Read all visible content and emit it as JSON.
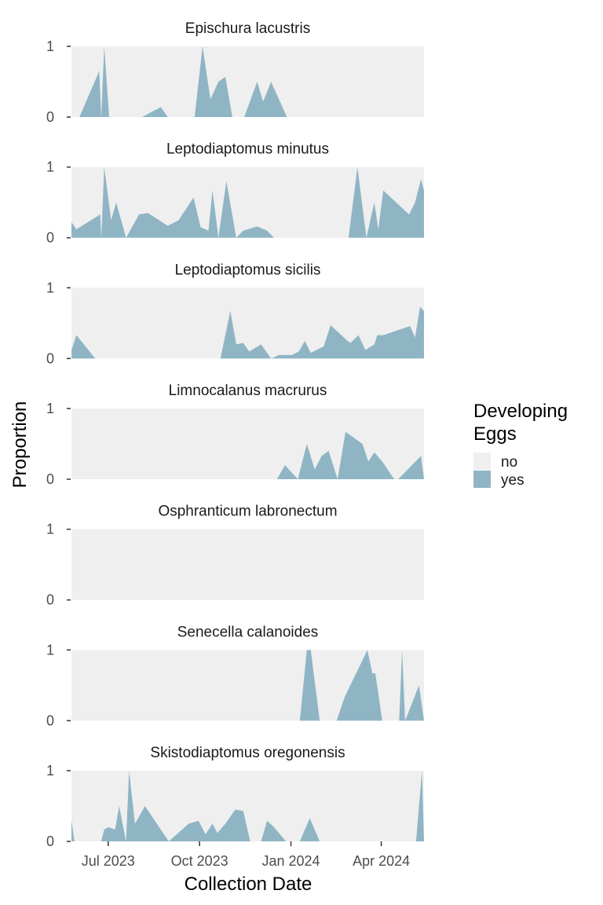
{
  "chart_data": {
    "type": "area",
    "xlabel": "Collection Date",
    "ylabel": "Proportion",
    "x_range": [
      "2023-05-25",
      "2024-05-14"
    ],
    "ylim": [
      0,
      1
    ],
    "y_ticks": [
      {
        "value": 0,
        "label": "0"
      },
      {
        "value": 1,
        "label": "1"
      }
    ],
    "x_ticks": [
      {
        "value": "2023-07-01",
        "label": "Jul 2023"
      },
      {
        "value": "2023-10-01",
        "label": "Oct 2023"
      },
      {
        "value": "2024-01-01",
        "label": "Jan 2024"
      },
      {
        "value": "2024-04-01",
        "label": "Apr 2024"
      }
    ],
    "panel_background_color": "#efefef",
    "yes_fill_color": "#8fb5c5",
    "legend": {
      "title_line1": "Developing",
      "title_line2": "Eggs",
      "placement": "right",
      "entries": [
        {
          "label": "no",
          "color": "#efefef"
        },
        {
          "label": "yes",
          "color": "#8fb5c5"
        }
      ]
    },
    "facets": [
      {
        "title": "Epischura lacustris",
        "points": [
          [
            "2023-06-02",
            0
          ],
          [
            "2023-06-22",
            0.65
          ],
          [
            "2023-06-24",
            0
          ],
          [
            "2023-06-27",
            1.0
          ],
          [
            "2023-07-02",
            0
          ],
          [
            "2023-08-04",
            0
          ],
          [
            "2023-08-23",
            0.14
          ],
          [
            "2023-08-30",
            0
          ],
          [
            "2023-09-26",
            0
          ],
          [
            "2023-10-04",
            1.0
          ],
          [
            "2023-10-12",
            0.25
          ],
          [
            "2023-10-20",
            0.5
          ],
          [
            "2023-10-27",
            0.57
          ],
          [
            "2023-11-03",
            0
          ],
          [
            "2023-11-15",
            0
          ],
          [
            "2023-11-28",
            0.5
          ],
          [
            "2023-12-04",
            0.22
          ],
          [
            "2023-12-12",
            0.5
          ],
          [
            "2023-12-28",
            0
          ]
        ]
      },
      {
        "title": "Leptodiaptomus minutus",
        "points": [
          [
            "2023-05-25",
            0.22
          ],
          [
            "2023-05-30",
            0.12
          ],
          [
            "2023-06-23",
            0.33
          ],
          [
            "2023-06-24",
            0
          ],
          [
            "2023-06-27",
            1.0
          ],
          [
            "2023-07-04",
            0.25
          ],
          [
            "2023-07-09",
            0.5
          ],
          [
            "2023-07-19",
            0
          ],
          [
            "2023-08-01",
            0.33
          ],
          [
            "2023-08-10",
            0.35
          ],
          [
            "2023-08-30",
            0.17
          ],
          [
            "2023-09-10",
            0.25
          ],
          [
            "2023-09-25",
            0.57
          ],
          [
            "2023-10-02",
            0.15
          ],
          [
            "2023-10-10",
            0.1
          ],
          [
            "2023-10-14",
            0.67
          ],
          [
            "2023-10-20",
            0
          ],
          [
            "2023-10-28",
            0.8
          ],
          [
            "2023-11-07",
            0
          ],
          [
            "2023-11-14",
            0.1
          ],
          [
            "2023-11-28",
            0.16
          ],
          [
            "2023-12-08",
            0.1
          ],
          [
            "2023-12-15",
            0
          ],
          [
            "2024-02-28",
            0
          ],
          [
            "2024-03-08",
            1.0
          ],
          [
            "2024-03-17",
            0
          ],
          [
            "2024-03-25",
            0.5
          ],
          [
            "2024-03-29",
            0.12
          ],
          [
            "2024-04-03",
            0.67
          ],
          [
            "2024-04-29",
            0.33
          ],
          [
            "2024-05-05",
            0.5
          ],
          [
            "2024-05-11",
            0.83
          ],
          [
            "2024-05-14",
            0.67
          ]
        ]
      },
      {
        "title": "Leptodiaptomus sicilis",
        "points": [
          [
            "2023-05-25",
            0.12
          ],
          [
            "2023-05-30",
            0.33
          ],
          [
            "2023-06-18",
            0
          ],
          [
            "2023-10-22",
            0
          ],
          [
            "2023-11-01",
            0.67
          ],
          [
            "2023-11-07",
            0.2
          ],
          [
            "2023-11-14",
            0.22
          ],
          [
            "2023-11-20",
            0.1
          ],
          [
            "2023-12-02",
            0.2
          ],
          [
            "2023-12-12",
            0
          ],
          [
            "2023-12-20",
            0.05
          ],
          [
            "2024-01-02",
            0.05
          ],
          [
            "2024-01-09",
            0.1
          ],
          [
            "2024-01-15",
            0.25
          ],
          [
            "2024-01-21",
            0.08
          ],
          [
            "2024-02-03",
            0.17
          ],
          [
            "2024-02-10",
            0.47
          ],
          [
            "2024-02-27",
            0.25
          ],
          [
            "2024-03-01",
            0.22
          ],
          [
            "2024-03-09",
            0.33
          ],
          [
            "2024-03-16",
            0.12
          ],
          [
            "2024-03-25",
            0.2
          ],
          [
            "2024-03-28",
            0.33
          ],
          [
            "2024-04-03",
            0.33
          ],
          [
            "2024-04-30",
            0.46
          ],
          [
            "2024-05-05",
            0.3
          ],
          [
            "2024-05-10",
            0.73
          ],
          [
            "2024-05-14",
            0.67
          ]
        ]
      },
      {
        "title": "Limnocalanus macrurus",
        "points": [
          [
            "2023-12-18",
            0
          ],
          [
            "2023-12-26",
            0.2
          ],
          [
            "2024-01-08",
            0
          ],
          [
            "2024-01-17",
            0.5
          ],
          [
            "2024-01-25",
            0.14
          ],
          [
            "2024-02-01",
            0.33
          ],
          [
            "2024-02-08",
            0.4
          ],
          [
            "2024-02-17",
            0
          ],
          [
            "2024-02-25",
            0.67
          ],
          [
            "2024-03-13",
            0.5
          ],
          [
            "2024-03-19",
            0.25
          ],
          [
            "2024-03-25",
            0.38
          ],
          [
            "2024-04-02",
            0.25
          ],
          [
            "2024-04-14",
            0
          ],
          [
            "2024-04-18",
            0
          ],
          [
            "2024-05-11",
            0.33
          ],
          [
            "2024-05-14",
            0
          ]
        ]
      },
      {
        "title": "Osphranticum labronectum",
        "points": []
      },
      {
        "title": "Senecella calanoides",
        "points": [
          [
            "2024-01-10",
            0
          ],
          [
            "2024-01-17",
            1.0
          ],
          [
            "2024-01-21",
            1.0
          ],
          [
            "2024-01-30",
            0
          ],
          [
            "2024-02-16",
            0
          ],
          [
            "2024-02-24",
            0.33
          ],
          [
            "2024-03-18",
            1.0
          ],
          [
            "2024-03-23",
            0.67
          ],
          [
            "2024-03-26",
            0.67
          ],
          [
            "2024-04-02",
            0
          ],
          [
            "2024-04-19",
            0
          ],
          [
            "2024-04-22",
            1.0
          ],
          [
            "2024-04-25",
            0
          ],
          [
            "2024-05-09",
            0.5
          ],
          [
            "2024-05-14",
            0
          ]
        ]
      },
      {
        "title": "Skistodiaptomus oregonensis",
        "points": [
          [
            "2023-05-25",
            0.3
          ],
          [
            "2023-05-28",
            0
          ],
          [
            "2023-06-24",
            0
          ],
          [
            "2023-06-27",
            0.17
          ],
          [
            "2023-07-01",
            0.2
          ],
          [
            "2023-07-08",
            0.17
          ],
          [
            "2023-07-12",
            0.5
          ],
          [
            "2023-07-19",
            0
          ],
          [
            "2023-07-22",
            1.0
          ],
          [
            "2023-07-28",
            0.25
          ],
          [
            "2023-08-07",
            0.5
          ],
          [
            "2023-08-31",
            0
          ],
          [
            "2023-09-20",
            0.25
          ],
          [
            "2023-09-30",
            0.29
          ],
          [
            "2023-10-07",
            0.1
          ],
          [
            "2023-10-14",
            0.25
          ],
          [
            "2023-10-19",
            0.12
          ],
          [
            "2023-10-27",
            0.25
          ],
          [
            "2023-11-06",
            0.45
          ],
          [
            "2023-11-14",
            0.43
          ],
          [
            "2023-11-21",
            0
          ],
          [
            "2023-12-02",
            0
          ],
          [
            "2023-12-08",
            0.29
          ],
          [
            "2023-12-15",
            0.2
          ],
          [
            "2023-12-27",
            0
          ],
          [
            "2024-01-10",
            0
          ],
          [
            "2024-01-20",
            0.33
          ],
          [
            "2024-01-30",
            0
          ],
          [
            "2024-05-06",
            0
          ],
          [
            "2024-05-12",
            1.0
          ],
          [
            "2024-05-14",
            0
          ]
        ]
      }
    ]
  }
}
